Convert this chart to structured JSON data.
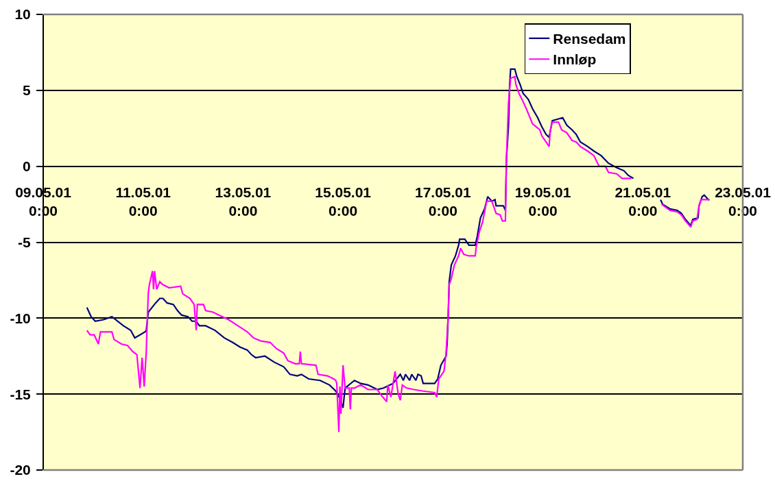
{
  "chart_data": {
    "type": "line",
    "xlim": [
      "--05-09T00:00",
      "--05-23T00:00"
    ],
    "xticks": [
      {
        "value": "--05-09",
        "label": "09.05.01\n0:00"
      },
      {
        "value": "--05-11",
        "label": "11.05.01\n0:00"
      },
      {
        "value": "--05-13",
        "label": "13.05.01\n0:00"
      },
      {
        "value": "--05-15",
        "label": "15.05.01\n0:00"
      },
      {
        "value": "--05-17",
        "label": "17.05.01\n0:00"
      },
      {
        "value": "--05-19",
        "label": "19.05.01\n0:00"
      },
      {
        "value": "--05-21",
        "label": "21.05.01\n0:00"
      },
      {
        "value": "--05-23",
        "label": "23.05.01\n0:00"
      }
    ],
    "ylim": [
      -20,
      10
    ],
    "yticks": [
      -20,
      -15,
      -10,
      -5,
      0,
      5,
      10
    ],
    "grid": "y",
    "legend": "top right",
    "line_style": "solid",
    "series": [
      {
        "name": "Rensedam",
        "color": "#000080",
        "x": [
          "--05-09T21:00",
          "--05-09T23:00",
          "--05-10T01:00",
          "--05-10T05:00",
          "--05-10T09:00",
          "--05-10T14:30",
          "--05-10T18:00",
          "--05-10T20:00",
          "--05-11T01:00",
          "--05-11T01:30",
          "--05-11T02:30",
          "--05-11T06:00",
          "--05-11T08:00",
          "--05-11T09:30",
          "--05-11T11:30",
          "--05-11T14:30",
          "--05-11T16:30",
          "--05-11T18:30",
          "--05-11T21:30",
          "--05-11T23:30",
          "--05-12T01:30",
          "--05-12T03:00",
          "--05-12T06:00",
          "--05-12T10:30",
          "--05-12T15:00",
          "--05-12T19:00",
          "--05-12T22:30",
          "--05-13T02:00",
          "--05-13T04:00",
          "--05-13T06:00",
          "--05-13T10:30",
          "--05-13T15:00",
          "--05-13T19:30",
          "--05-13T22:30",
          "--05-14T02:00",
          "--05-14T04:00",
          "--05-14T07:30",
          "--05-14T13:00",
          "--05-14T17:30",
          "--05-14T20:30",
          "--05-14T22:30",
          "--05-15T00:00",
          "--05-15T01:00",
          "--05-15T05:30",
          "--05-15T08:30",
          "--05-15T12:00",
          "--05-15T16:30",
          "--05-15T19:30",
          "--05-16T00:00",
          "--05-16T03:30",
          "--05-16T05:00",
          "--05-16T06:00",
          "--05-16T08:00",
          "--05-16T09:00",
          "--05-16T11:00",
          "--05-16T12:00",
          "--05-16T13:30",
          "--05-16T14:30",
          "--05-16T20:00",
          "--05-16T21:30",
          "--05-16T23:00",
          "--05-17T01:30",
          "--05-17T02:00",
          "--05-17T02:30",
          "--05-17T03:00",
          "--05-17T04:00",
          "--05-17T06:00",
          "--05-17T07:30",
          "--05-17T08:00",
          "--05-17T10:30",
          "--05-17T12:30",
          "--05-17T15:30",
          "--05-17T16:30",
          "--05-17T18:00",
          "--05-17T20:00",
          "--05-17T21:30",
          "--05-17T23:30",
          "--05-18T01:00",
          "--05-18T01:30",
          "--05-18T05:00",
          "--05-18T06:00",
          "--05-18T06:30",
          "--05-18T07:30",
          "--05-18T08:00",
          "--05-18T08:30",
          "--05-18T10:30",
          "--05-18T11:30",
          "--05-18T13:00",
          "--05-18T14:30",
          "--05-18T17:00",
          "--05-18T19:00",
          "--05-18T21:30",
          "--05-18T23:30",
          "--05-19T01:30",
          "--05-19T03:00",
          "--05-19T04:30",
          "--05-19T07:00",
          "--05-19T09:30",
          "--05-19T11:30",
          "--05-19T14:00",
          "--05-19T16:00",
          "--05-19T18:00",
          "--05-19T21:30",
          "--05-20T00:30",
          "--05-20T04:00",
          "--05-20T07:30",
          "--05-20T11:30",
          "--05-20T15:00",
          "--05-20T17:00",
          "--05-20T19:30",
          "--05-21T00:00",
          "--05-21T08:30",
          "--05-21T09:30",
          "--05-21T13:00",
          "--05-21T16:30",
          "--05-21T18:30",
          "--05-21T20:30",
          "--05-21T23:00",
          "--05-22T00:00",
          "--05-22T02:30",
          "--05-22T03:00",
          "--05-22T04:30",
          "--05-22T05:30",
          "--05-22T07:30",
          "--05-22T08:00"
        ],
        "values": [
          -9.3,
          -9.9,
          -10.2,
          -10.1,
          -9.9,
          -10.5,
          -10.8,
          -11.3,
          -10.9,
          -10.8,
          -9.6,
          -9.0,
          -8.7,
          -8.7,
          -9.0,
          -9.1,
          -9.5,
          -9.8,
          -9.9,
          -10.2,
          -10.2,
          -10.5,
          -10.5,
          -10.8,
          -11.3,
          -11.6,
          -11.9,
          -12.1,
          -12.4,
          -12.6,
          -12.5,
          -12.9,
          -13.2,
          -13.7,
          -13.8,
          -13.7,
          -14.0,
          -14.1,
          -14.4,
          -14.8,
          -15.3,
          -15.9,
          -14.6,
          -14.1,
          -14.3,
          -14.4,
          -14.7,
          -14.6,
          -14.3,
          -13.7,
          -14.1,
          -13.7,
          -14.1,
          -13.7,
          -14.1,
          -13.7,
          -13.8,
          -14.3,
          -14.3,
          -14.0,
          -13.1,
          -12.5,
          -11.7,
          -9.9,
          -7.6,
          -6.5,
          -5.9,
          -5.2,
          -4.8,
          -4.8,
          -5.2,
          -5.2,
          -4.6,
          -3.4,
          -2.8,
          -2.0,
          -2.3,
          -2.2,
          -2.6,
          -2.6,
          -2.9,
          0.5,
          2.7,
          5.3,
          6.4,
          6.4,
          5.9,
          5.4,
          4.8,
          4.4,
          3.8,
          3.2,
          2.6,
          2.1,
          1.9,
          3.0,
          3.1,
          3.2,
          2.7,
          2.4,
          2.1,
          1.6,
          1.3,
          1.0,
          0.7,
          0.2,
          -0.1,
          -0.3,
          -0.6,
          -0.8,
          null,
          -2.2,
          -2.5,
          -2.8,
          -2.9,
          -3.1,
          -3.5,
          -3.9,
          -3.5,
          -3.4,
          -2.6,
          -2.0,
          -1.9,
          -2.2,
          -2.2
        ]
      },
      {
        "name": "Innløp",
        "color": "#ff00ff",
        "x": [
          "--05-09T21:00",
          "--05-09T22:30",
          "--05-10T00:30",
          "--05-10T02:30",
          "--05-10T03:30",
          "--05-10T09:00",
          "--05-10T10:00",
          "--05-10T13:30",
          "--05-10T16:30",
          "--05-10T19:00",
          "--05-10T21:00",
          "--05-10T22:30",
          "--05-10T23:30",
          "--05-11T00:30",
          "--05-11T01:30",
          "--05-11T02:00",
          "--05-11T02:30",
          "--05-11T03:00",
          "--05-11T04:30",
          "--05-11T05:00",
          "--05-11T05:30",
          "--05-11T06:30",
          "--05-11T08:00",
          "--05-11T09:30",
          "--05-11T12:30",
          "--05-11T18:00",
          "--05-11T19:00",
          "--05-11T22:30",
          "--05-12T00:30",
          "--05-12T01:30",
          "--05-12T02:00",
          "--05-12T05:00",
          "--05-12T06:00",
          "--05-12T09:30",
          "--05-12T12:30",
          "--05-12T17:00",
          "--05-12T21:30",
          "--05-13T02:00",
          "--05-13T05:00",
          "--05-13T08:30",
          "--05-13T13:00",
          "--05-13T16:00",
          "--05-13T19:30",
          "--05-13T21:30",
          "--05-14T01:00",
          "--05-14T03:00",
          "--05-14T03:30",
          "--05-14T04:00",
          "--05-14T11:00",
          "--05-14T12:00",
          "--05-14T16:30",
          "--05-14T19:30",
          "--05-14T20:30",
          "--05-14T21:00",
          "--05-14T22:00",
          "--05-14T22:30",
          "--05-14T23:00",
          "--05-15T00:00",
          "--05-15T01:00",
          "--05-15T03:00",
          "--05-15T03:30",
          "--05-15T04:00",
          "--05-15T05:30",
          "--05-15T08:30",
          "--05-15T12:00",
          "--05-15T16:30",
          "--05-15T18:30",
          "--05-15T21:00",
          "--05-15T21:30",
          "--05-15T23:00",
          "--05-16T01:00",
          "--05-16T02:30",
          "--05-16T03:30",
          "--05-16T04:30",
          "--05-16T06:30",
          "--05-16T10:00",
          "--05-16T14:30",
          "--05-16T20:00",
          "--05-16T21:00",
          "--05-16T22:00",
          "--05-17T00:30",
          "--05-17T01:30",
          "--05-17T02:30",
          "--05-17T03:00",
          "--05-17T04:00",
          "--05-17T05:30",
          "--05-17T07:30",
          "--05-17T08:30",
          "--05-17T10:00",
          "--05-17T12:30",
          "--05-17T15:30",
          "--05-17T16:00",
          "--05-17T17:30",
          "--05-17T19:00",
          "--05-17T21:00",
          "--05-17T23:30",
          "--05-18T01:30",
          "--05-18T03:30",
          "--05-18T04:30",
          "--05-18T06:00",
          "--05-18T06:30",
          "--05-18T07:30",
          "--05-18T08:30",
          "--05-18T10:30",
          "--05-18T11:00",
          "--05-18T12:30",
          "--05-18T14:00",
          "--05-18T16:00",
          "--05-18T17:30",
          "--05-18T19:00",
          "--05-18T22:30",
          "--05-18T23:30",
          "--05-19T01:30",
          "--05-19T03:00",
          "--05-19T03:30",
          "--05-19T04:30",
          "--05-19T07:30",
          "--05-19T09:00",
          "--05-19T11:30",
          "--05-19T14:00",
          "--05-19T16:00",
          "--05-19T18:00",
          "--05-19T21:30",
          "--05-20T00:30",
          "--05-20T03:00",
          "--05-20T06:00",
          "--05-20T07:30",
          "--05-20T11:30",
          "--05-20T14:00",
          "--05-20T18:30",
          "--05-21T00:00",
          "--05-21T09:00",
          "--05-21T13:00",
          "--05-21T16:30",
          "--05-21T18:30",
          "--05-21T20:30",
          "--05-21T23:00",
          "--05-22T00:00",
          "--05-22T02:00",
          "--05-22T03:00",
          "--05-22T04:00",
          "--05-22T07:30",
          "--05-22T08:00"
        ],
        "values": [
          -10.8,
          -11.1,
          -11.1,
          -11.7,
          -10.9,
          -10.9,
          -11.4,
          -11.7,
          -11.8,
          -12.2,
          -12.4,
          -14.6,
          -12.6,
          -14.5,
          -12.2,
          -10.1,
          -8.3,
          -7.8,
          -6.9,
          -8.1,
          -6.9,
          -8.1,
          -7.6,
          -7.8,
          -8.0,
          -7.9,
          -8.4,
          -8.7,
          -9.1,
          -10.8,
          -9.1,
          -9.1,
          -9.5,
          -9.6,
          -9.8,
          -10.1,
          -10.5,
          -10.9,
          -11.3,
          -11.5,
          -11.6,
          -12.0,
          -12.3,
          -12.8,
          -13.0,
          -13.0,
          -12.2,
          -13.0,
          -13.1,
          -13.7,
          -13.8,
          -14.0,
          -14.1,
          -14.3,
          -17.5,
          -14.5,
          -16.3,
          -13.1,
          -14.6,
          -14.6,
          -16.0,
          -14.6,
          -14.6,
          -14.4,
          -14.7,
          -14.7,
          -15.1,
          -15.5,
          -14.4,
          -15.2,
          -13.5,
          -15.0,
          -15.4,
          -14.4,
          -14.6,
          -14.7,
          -14.8,
          -14.9,
          -15.2,
          -14.0,
          -13.5,
          -12.3,
          -9.9,
          -7.8,
          -7.4,
          -6.5,
          -5.9,
          -5.4,
          -5.8,
          -5.9,
          -5.9,
          -5.3,
          -4.3,
          -3.7,
          -2.3,
          -2.3,
          -3.1,
          -3.2,
          -3.6,
          -3.6,
          0.5,
          4.2,
          5.8,
          5.9,
          5.4,
          4.8,
          4.4,
          3.8,
          3.3,
          2.8,
          2.4,
          2.0,
          1.6,
          1.3,
          2.3,
          2.9,
          2.9,
          2.4,
          2.2,
          1.7,
          1.6,
          1.3,
          1.0,
          0.7,
          0.0,
          0.0,
          -0.4,
          -0.5,
          -0.8,
          -0.8,
          null,
          -2.5,
          -2.9,
          -3.0,
          -3.2,
          -3.6,
          -4.0,
          -3.6,
          -3.5,
          -2.6,
          -2.2,
          -2.2,
          -2.2
        ]
      }
    ]
  }
}
